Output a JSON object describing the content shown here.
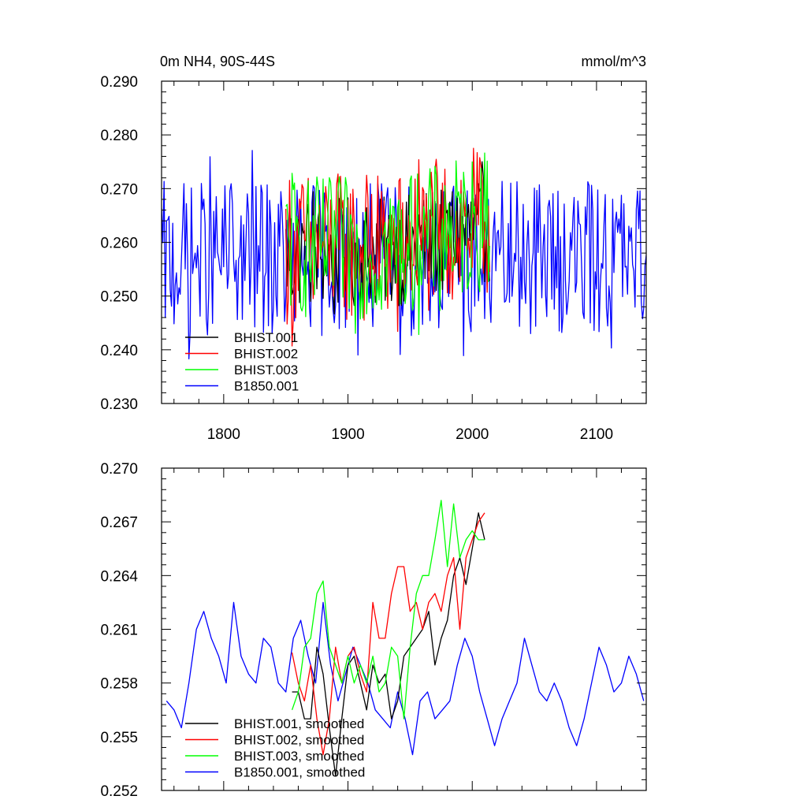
{
  "chart_data": [
    {
      "type": "line",
      "title": "0m NH4, 90S-44S",
      "units": "mmol/m^3",
      "xlim": [
        1750,
        2140
      ],
      "ylim": [
        0.23,
        0.29
      ],
      "xticks": [
        1800,
        1900,
        2000,
        2100
      ],
      "xtick_labels": [
        "1800",
        "1900",
        "2000",
        "2100"
      ],
      "yticks": [
        0.23,
        0.24,
        0.25,
        0.26,
        0.27,
        0.28,
        0.29
      ],
      "ytick_labels": [
        "0.230",
        "0.240",
        "0.250",
        "0.260",
        "0.270",
        "0.280",
        "0.290"
      ],
      "legend_position": "bottom-left",
      "series": [
        {
          "name": "BHIST.001",
          "color": "#000000",
          "x_start": 1850,
          "x_end": 2014,
          "summary": {
            "min": 0.245,
            "max": 0.275,
            "mean": 0.258
          }
        },
        {
          "name": "BHIST.002",
          "color": "#ff0000",
          "x_start": 1850,
          "x_end": 2014,
          "summary": {
            "min": 0.24,
            "max": 0.281,
            "mean": 0.259
          }
        },
        {
          "name": "BHIST.003",
          "color": "#00ff00",
          "x_start": 1850,
          "x_end": 2014,
          "summary": {
            "min": 0.242,
            "max": 0.28,
            "mean": 0.259
          }
        },
        {
          "name": "B1850.001",
          "color": "#0000ff",
          "x_start": 1750,
          "x_end": 2140,
          "summary": {
            "min": 0.237,
            "max": 0.278,
            "mean": 0.257
          }
        }
      ]
    },
    {
      "type": "line",
      "title": "",
      "xlim": [
        1750,
        2140
      ],
      "ylim": [
        0.252,
        0.27
      ],
      "xticks": [
        1800,
        1900,
        2000,
        2100
      ],
      "yticks": [
        0.252,
        0.255,
        0.258,
        0.261,
        0.264,
        0.267,
        0.27
      ],
      "ytick_labels": [
        "0.252",
        "0.255",
        "0.258",
        "0.261",
        "0.264",
        "0.267",
        "0.270"
      ],
      "legend_position": "bottom-left",
      "series": [
        {
          "name": "BHIST.001, smoothed",
          "color": "#000000",
          "x": [
            1855,
            1860,
            1865,
            1870,
            1875,
            1880,
            1885,
            1890,
            1895,
            1900,
            1905,
            1910,
            1915,
            1920,
            1925,
            1930,
            1935,
            1940,
            1945,
            1950,
            1955,
            1960,
            1965,
            1970,
            1975,
            1980,
            1985,
            1990,
            1995,
            2000,
            2005,
            2010
          ],
          "y": [
            0.2575,
            0.2575,
            0.256,
            0.256,
            0.26,
            0.2585,
            0.2555,
            0.2528,
            0.256,
            0.259,
            0.2595,
            0.258,
            0.2565,
            0.259,
            0.258,
            0.2585,
            0.256,
            0.257,
            0.2595,
            0.26,
            0.2605,
            0.261,
            0.262,
            0.259,
            0.2605,
            0.2615,
            0.264,
            0.265,
            0.2635,
            0.2655,
            0.2675,
            0.266
          ]
        },
        {
          "name": "BHIST.002, smoothed",
          "color": "#ff0000",
          "x": [
            1855,
            1860,
            1865,
            1870,
            1875,
            1880,
            1885,
            1890,
            1895,
            1900,
            1905,
            1910,
            1915,
            1920,
            1925,
            1930,
            1935,
            1940,
            1945,
            1950,
            1955,
            1960,
            1965,
            1970,
            1975,
            1980,
            1985,
            1990,
            1995,
            2000,
            2005,
            2010
          ],
          "y": [
            0.2597,
            0.258,
            0.257,
            0.259,
            0.256,
            0.254,
            0.256,
            0.26,
            0.258,
            0.2595,
            0.26,
            0.2585,
            0.2575,
            0.2625,
            0.2605,
            0.2605,
            0.263,
            0.2645,
            0.2645,
            0.262,
            0.2625,
            0.261,
            0.2625,
            0.263,
            0.262,
            0.264,
            0.265,
            0.261,
            0.265,
            0.266,
            0.267,
            0.2675
          ]
        },
        {
          "name": "BHIST.003, smoothed",
          "color": "#00ff00",
          "x": [
            1855,
            1860,
            1865,
            1870,
            1875,
            1880,
            1885,
            1890,
            1895,
            1900,
            1905,
            1910,
            1915,
            1920,
            1925,
            1930,
            1935,
            1940,
            1945,
            1950,
            1955,
            1960,
            1965,
            1970,
            1975,
            1980,
            1985,
            1990,
            1995,
            2000,
            2005,
            2010
          ],
          "y": [
            0.2565,
            0.2575,
            0.26,
            0.2605,
            0.263,
            0.2637,
            0.26,
            0.259,
            0.258,
            0.2595,
            0.258,
            0.259,
            0.258,
            0.2595,
            0.2575,
            0.258,
            0.26,
            0.2595,
            0.256,
            0.26,
            0.263,
            0.264,
            0.264,
            0.266,
            0.2682,
            0.2645,
            0.268,
            0.265,
            0.266,
            0.2665,
            0.266,
            0.266
          ]
        },
        {
          "name": "B1850.001, smoothed",
          "color": "#0000ff",
          "x": [
            1754,
            1760,
            1766,
            1772,
            1778,
            1784,
            1790,
            1796,
            1802,
            1808,
            1814,
            1820,
            1826,
            1832,
            1838,
            1844,
            1850,
            1856,
            1862,
            1868,
            1874,
            1880,
            1886,
            1892,
            1898,
            1904,
            1910,
            1916,
            1922,
            1928,
            1934,
            1940,
            1946,
            1952,
            1958,
            1964,
            1970,
            1976,
            1982,
            1988,
            1994,
            2000,
            2006,
            2012,
            2018,
            2024,
            2030,
            2036,
            2042,
            2048,
            2054,
            2060,
            2066,
            2072,
            2078,
            2084,
            2090,
            2096,
            2102,
            2108,
            2114,
            2120,
            2126,
            2132,
            2138
          ],
          "y": [
            0.257,
            0.2565,
            0.2555,
            0.258,
            0.261,
            0.262,
            0.2605,
            0.2595,
            0.258,
            0.2625,
            0.2595,
            0.2585,
            0.258,
            0.2605,
            0.26,
            0.258,
            0.2575,
            0.2605,
            0.2615,
            0.2595,
            0.258,
            0.2625,
            0.259,
            0.257,
            0.2585,
            0.26,
            0.259,
            0.258,
            0.2565,
            0.256,
            0.2555,
            0.2575,
            0.256,
            0.254,
            0.257,
            0.2575,
            0.256,
            0.2565,
            0.257,
            0.259,
            0.2605,
            0.2595,
            0.2575,
            0.256,
            0.2545,
            0.256,
            0.257,
            0.258,
            0.2605,
            0.259,
            0.2575,
            0.257,
            0.258,
            0.257,
            0.2555,
            0.2545,
            0.256,
            0.258,
            0.26,
            0.259,
            0.2575,
            0.258,
            0.2595,
            0.2585,
            0.257
          ]
        }
      ]
    }
  ]
}
